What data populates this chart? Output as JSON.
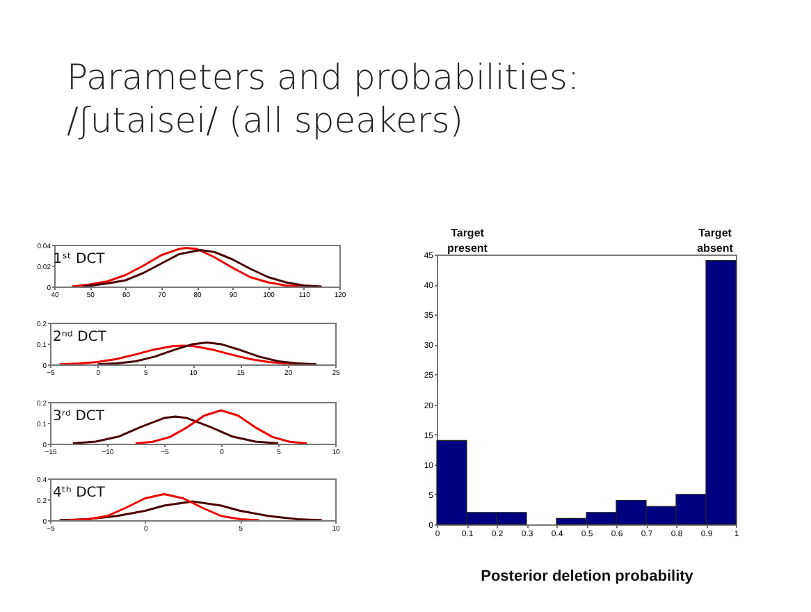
{
  "chart_data": [
    {
      "type": "other",
      "title": "Parameters and probabilities:",
      "subtitle": "/ʃutaisei/  (all speakers)"
    },
    {
      "type": "line",
      "title": "1ˢᵗ DCT",
      "xlim": [
        40,
        120
      ],
      "xticks": [
        40,
        50,
        60,
        70,
        80,
        90,
        100,
        110,
        120
      ],
      "ylim": [
        0,
        0.04
      ],
      "yticks": [
        0,
        0.02,
        0.04
      ],
      "series": [
        {
          "color": "#ee0000",
          "x": [
            45,
            50,
            55,
            60,
            65,
            70,
            75,
            77,
            80,
            85,
            90,
            95,
            100,
            105,
            110
          ],
          "values": [
            0,
            0.002,
            0.005,
            0.011,
            0.02,
            0.03,
            0.036,
            0.037,
            0.036,
            0.028,
            0.018,
            0.009,
            0.004,
            0.001,
            0
          ]
        },
        {
          "color": "#4a0000",
          "x": [
            48,
            55,
            60,
            65,
            70,
            75,
            81,
            85,
            90,
            95,
            100,
            105,
            110,
            115
          ],
          "values": [
            0,
            0.003,
            0.006,
            0.013,
            0.022,
            0.031,
            0.035,
            0.033,
            0.026,
            0.017,
            0.009,
            0.004,
            0.001,
            0
          ]
        }
      ]
    },
    {
      "type": "line",
      "title": "2ⁿᵈ DCT",
      "xlim": [
        -5,
        25
      ],
      "xticks": [
        -5,
        0,
        5,
        10,
        15,
        20,
        25
      ],
      "ylim": [
        0,
        0.2
      ],
      "yticks": [
        0,
        0.1,
        0.2
      ],
      "series": [
        {
          "color": "#ee0000",
          "x": [
            -4,
            -2,
            0,
            2,
            4,
            6,
            8,
            9,
            10,
            12,
            14,
            16,
            18,
            20,
            22,
            23
          ],
          "values": [
            0.001,
            0.004,
            0.012,
            0.026,
            0.048,
            0.072,
            0.088,
            0.09,
            0.088,
            0.072,
            0.048,
            0.026,
            0.012,
            0.004,
            0.001,
            0.001
          ]
        },
        {
          "color": "#4a0000",
          "x": [
            0,
            2,
            4,
            6,
            8,
            10,
            11.5,
            13,
            15,
            17,
            19,
            21,
            23
          ],
          "values": [
            0.001,
            0.005,
            0.015,
            0.037,
            0.069,
            0.097,
            0.105,
            0.097,
            0.069,
            0.037,
            0.015,
            0.005,
            0.001
          ]
        }
      ]
    },
    {
      "type": "line",
      "title": "3ʳᵈ DCT",
      "xlim": [
        -15,
        10
      ],
      "xticks": [
        -15,
        -10,
        -5,
        0,
        5,
        10
      ],
      "ylim": [
        0,
        0.2
      ],
      "yticks": [
        0,
        0.1,
        0.2
      ],
      "series": [
        {
          "color": "#4a0000",
          "x": [
            -13,
            -11,
            -9,
            -7,
            -5,
            -4,
            -3,
            -1,
            1,
            3,
            5
          ],
          "values": [
            0.002,
            0.01,
            0.034,
            0.081,
            0.123,
            0.13,
            0.123,
            0.081,
            0.034,
            0.01,
            0.002
          ]
        },
        {
          "color": "#ee0000",
          "x": [
            -7.5,
            -6,
            -4.5,
            -3,
            -1.5,
            0,
            1.5,
            3,
            4.5,
            6,
            7.5
          ],
          "values": [
            0.002,
            0.009,
            0.032,
            0.078,
            0.134,
            0.16,
            0.134,
            0.078,
            0.032,
            0.009,
            0.002
          ]
        }
      ]
    },
    {
      "type": "line",
      "title": "4ᵗʰ DCT",
      "xlim": [
        -5,
        10
      ],
      "xticks": [
        -5,
        0,
        5,
        10
      ],
      "ylim": [
        0,
        0.4
      ],
      "yticks": [
        0,
        0.2,
        0.4
      ],
      "series": [
        {
          "color": "#4a0000",
          "x": [
            -4.5,
            -3,
            -1.5,
            0,
            1,
            2.5,
            4,
            5,
            6.5,
            8,
            9.3
          ],
          "values": [
            0,
            0.01,
            0.04,
            0.09,
            0.14,
            0.18,
            0.14,
            0.09,
            0.04,
            0.01,
            0
          ]
        },
        {
          "color": "#ee0000",
          "x": [
            -4,
            -3,
            -2,
            -1,
            0,
            1,
            2,
            3,
            4,
            5,
            6
          ],
          "values": [
            0,
            0.01,
            0.04,
            0.12,
            0.21,
            0.25,
            0.21,
            0.12,
            0.04,
            0.01,
            0
          ]
        }
      ]
    },
    {
      "type": "histogram",
      "xlabel": "Posterior deletion probability",
      "color": "#000080",
      "bins": [
        0,
        0.1,
        0.2,
        0.3,
        0.4,
        0.5,
        0.6,
        0.7,
        0.8,
        0.9,
        1
      ],
      "values": [
        14,
        2,
        2,
        0,
        1,
        2,
        4,
        3,
        5,
        44
      ],
      "xlim": [
        0,
        1
      ],
      "xticks": [
        0,
        0.1,
        0.2,
        0.3,
        0.4,
        0.5,
        0.6,
        0.7,
        0.8,
        0.9,
        1
      ],
      "ylim": [
        0,
        45
      ],
      "yticks": [
        0,
        5,
        10,
        15,
        20,
        25,
        30,
        35,
        40,
        45
      ],
      "annotations": [
        "Target present",
        "Target absent"
      ]
    }
  ]
}
